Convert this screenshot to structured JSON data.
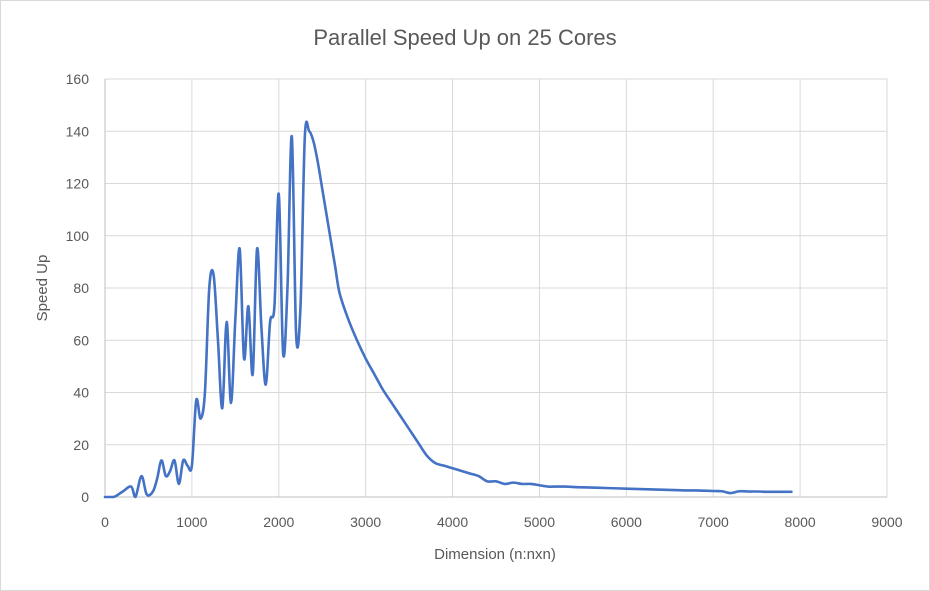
{
  "chart_data": {
    "type": "line",
    "title": "Parallel Speed Up on 25 Cores",
    "xlabel": "Dimension (n:nxn)",
    "ylabel": "Speed Up",
    "xlim": [
      0,
      9000
    ],
    "ylim": [
      0,
      160
    ],
    "x_ticks": [
      0,
      1000,
      2000,
      3000,
      4000,
      5000,
      6000,
      7000,
      8000,
      9000
    ],
    "y_ticks": [
      0,
      20,
      40,
      60,
      80,
      100,
      120,
      140,
      160
    ],
    "grid": true,
    "legend": "none",
    "series_color": "#4472c4",
    "series": [
      {
        "x": [
          0,
          100,
          200,
          300,
          350,
          420,
          480,
          550,
          600,
          650,
          700,
          750,
          800,
          850,
          900,
          950,
          1000,
          1050,
          1100,
          1150,
          1200,
          1250,
          1300,
          1350,
          1400,
          1450,
          1500,
          1550,
          1600,
          1650,
          1700,
          1750,
          1800,
          1850,
          1900,
          1950,
          2000,
          2050,
          2100,
          2150,
          2200,
          2250,
          2300,
          2350,
          2400,
          2450,
          2500,
          2550,
          2600,
          2650,
          2700,
          2800,
          2900,
          3000,
          3100,
          3200,
          3300,
          3400,
          3500,
          3600,
          3700,
          3800,
          3900,
          4000,
          4100,
          4200,
          4300,
          4400,
          4500,
          4600,
          4700,
          4800,
          4900,
          5000,
          5100,
          5200,
          5300,
          5400,
          5500,
          5600,
          5700,
          5800,
          5900,
          6000,
          6100,
          6200,
          6300,
          6400,
          6500,
          6600,
          6700,
          6800,
          6900,
          7000,
          7100,
          7200,
          7300,
          7400,
          7500,
          7600,
          7700,
          7800,
          7900
        ],
        "y": [
          0,
          0,
          2,
          4,
          0,
          8,
          1,
          2,
          7,
          14,
          8,
          10,
          14,
          5,
          14,
          12,
          12,
          37,
          30,
          40,
          80,
          85,
          60,
          34,
          67,
          36,
          68,
          95,
          53,
          73,
          47,
          95,
          65,
          43,
          67,
          73,
          116,
          55,
          80,
          138,
          62,
          73,
          138,
          140,
          136,
          128,
          118,
          108,
          98,
          88,
          78,
          68,
          60,
          53,
          47,
          41,
          36,
          31,
          26,
          21,
          16,
          13,
          12,
          11,
          10,
          9,
          8,
          6,
          6,
          5,
          5.5,
          5,
          5,
          4.5,
          4,
          4,
          4,
          3.8,
          3.7,
          3.6,
          3.5,
          3.4,
          3.3,
          3.2,
          3.1,
          3,
          2.9,
          2.8,
          2.7,
          2.6,
          2.5,
          2.5,
          2.4,
          2.3,
          2.2,
          1.5,
          2.2,
          2.1,
          2.1,
          2.0,
          2.0,
          2.0,
          2.0
        ]
      }
    ]
  }
}
